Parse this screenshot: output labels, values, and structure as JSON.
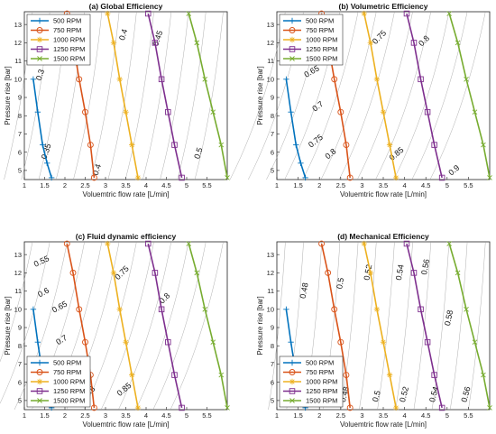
{
  "chart_data": [
    {
      "type": "line",
      "title": "(a) Global Efficiency",
      "xlabel": "Voluemtric flow rate [L/min]",
      "ylabel": "Pressure rise [bar]",
      "xlim": [
        1,
        6
      ],
      "ylim": [
        4.5,
        13.7
      ],
      "xticks": [
        "1",
        "1.5",
        "2",
        "2.5",
        "3",
        "3.5",
        "4",
        "4.5",
        "5",
        "5.5"
      ],
      "yticks": [
        "5",
        "6",
        "7",
        "8",
        "9",
        "10",
        "11",
        "12",
        "13"
      ],
      "legend_position": "top-left",
      "series": [
        {
          "name": "500 RPM",
          "color": "#0072BD",
          "marker": "plus",
          "x": [
            1.22,
            1.33,
            1.45,
            1.56,
            1.67
          ],
          "y": [
            10,
            8.2,
            6.4,
            5.4,
            4.6
          ]
        },
        {
          "name": "750 RPM",
          "color": "#D95319",
          "marker": "circle",
          "x": [
            2.05,
            2.2,
            2.35,
            2.5,
            2.63,
            2.72
          ],
          "y": [
            13.6,
            12,
            10,
            8.2,
            6.4,
            4.6
          ]
        },
        {
          "name": "1000 RPM",
          "color": "#EDB120",
          "marker": "asterisk",
          "x": [
            3.05,
            3.2,
            3.35,
            3.5,
            3.65,
            3.8
          ],
          "y": [
            13.6,
            12,
            10,
            8.2,
            6.4,
            4.6
          ]
        },
        {
          "name": "1250 RPM",
          "color": "#7E2F8E",
          "marker": "square",
          "x": [
            4.05,
            4.22,
            4.38,
            4.54,
            4.7,
            4.88
          ],
          "y": [
            13.6,
            12,
            10,
            8.2,
            6.4,
            4.6
          ]
        },
        {
          "name": "1500 RPM",
          "color": "#77AC30",
          "marker": "x",
          "x": [
            5.05,
            5.25,
            5.45,
            5.65,
            5.85,
            6.0
          ],
          "y": [
            13.6,
            12,
            10,
            8.2,
            6.4,
            4.6
          ]
        }
      ],
      "contour_labels": [
        {
          "text": "0.35",
          "x": 2.4,
          "y": 12.3,
          "angle": -72
        },
        {
          "text": "0.3",
          "x": 1.45,
          "y": 10.2,
          "angle": -72
        },
        {
          "text": "0.4",
          "x": 3.5,
          "y": 12.4,
          "angle": -72
        },
        {
          "text": "0.45",
          "x": 4.35,
          "y": 12.2,
          "angle": -72
        },
        {
          "text": "0.35",
          "x": 1.6,
          "y": 6.0,
          "angle": -72
        },
        {
          "text": "0.4",
          "x": 2.85,
          "y": 5.0,
          "angle": -72
        },
        {
          "text": "0.5",
          "x": 5.35,
          "y": 5.9,
          "angle": -72
        }
      ]
    },
    {
      "type": "line",
      "title": "(b) Volumetric Efficiency",
      "xlabel": "Voluemtric flow rate [L/min]",
      "ylabel": "Pressure rise [bar]",
      "xlim": [
        1,
        6
      ],
      "ylim": [
        4.5,
        13.7
      ],
      "xticks": [
        "1",
        "1.5",
        "2",
        "2.5",
        "3",
        "3.5",
        "4",
        "4.5",
        "5",
        "5.5"
      ],
      "yticks": [
        "5",
        "6",
        "7",
        "8",
        "9",
        "10",
        "11",
        "12",
        "13"
      ],
      "legend_position": "top-left",
      "series": [
        {
          "name": "500 RPM",
          "color": "#0072BD",
          "marker": "plus",
          "x": [
            1.22,
            1.33,
            1.45,
            1.56,
            1.67
          ],
          "y": [
            10,
            8.2,
            6.4,
            5.4,
            4.6
          ]
        },
        {
          "name": "750 RPM",
          "color": "#D95319",
          "marker": "circle",
          "x": [
            2.05,
            2.2,
            2.35,
            2.5,
            2.63,
            2.72
          ],
          "y": [
            13.6,
            12,
            10,
            8.2,
            6.4,
            4.6
          ]
        },
        {
          "name": "1000 RPM",
          "color": "#EDB120",
          "marker": "asterisk",
          "x": [
            3.05,
            3.2,
            3.35,
            3.5,
            3.65,
            3.8
          ],
          "y": [
            13.6,
            12,
            10,
            8.2,
            6.4,
            4.6
          ]
        },
        {
          "name": "1250 RPM",
          "color": "#7E2F8E",
          "marker": "square",
          "x": [
            4.05,
            4.22,
            4.38,
            4.54,
            4.7,
            4.88
          ],
          "y": [
            13.6,
            12,
            10,
            8.2,
            6.4,
            4.6
          ]
        },
        {
          "name": "1500 RPM",
          "color": "#77AC30",
          "marker": "x",
          "x": [
            5.05,
            5.25,
            5.45,
            5.65,
            5.85,
            6.0
          ],
          "y": [
            13.6,
            12,
            10,
            8.2,
            6.4,
            4.6
          ]
        }
      ],
      "contour_labels": [
        {
          "text": "0.6",
          "x": 1.45,
          "y": 11.4,
          "angle": -30
        },
        {
          "text": "0.65",
          "x": 1.85,
          "y": 10.3,
          "angle": -30
        },
        {
          "text": "0.75",
          "x": 3.45,
          "y": 12.2,
          "angle": -45
        },
        {
          "text": "0.8",
          "x": 4.5,
          "y": 12.0,
          "angle": -45
        },
        {
          "text": "0.7",
          "x": 2.0,
          "y": 8.4,
          "angle": -38
        },
        {
          "text": "0.75",
          "x": 1.95,
          "y": 6.5,
          "angle": -38
        },
        {
          "text": "0.8",
          "x": 2.3,
          "y": 5.8,
          "angle": -40
        },
        {
          "text": "0.85",
          "x": 3.85,
          "y": 5.8,
          "angle": -40
        },
        {
          "text": "0.9",
          "x": 5.2,
          "y": 4.9,
          "angle": -40
        }
      ]
    },
    {
      "type": "line",
      "title": "(c) Fluid dynamic efficiency",
      "xlabel": "Voluemtric flow rate [L/min]",
      "ylabel": "Pressure rise [bar]",
      "xlim": [
        1,
        6
      ],
      "ylim": [
        4.5,
        13.7
      ],
      "xticks": [
        "1",
        "1.5",
        "2",
        "2.5",
        "3",
        "3.5",
        "4",
        "4.5",
        "5",
        "5.5"
      ],
      "yticks": [
        "5",
        "6",
        "7",
        "8",
        "9",
        "10",
        "11",
        "12",
        "13"
      ],
      "legend_position": "bottom-left",
      "series": [
        {
          "name": "500 RPM",
          "color": "#0072BD",
          "marker": "plus",
          "x": [
            1.22,
            1.33,
            1.45,
            1.56,
            1.67
          ],
          "y": [
            10,
            8.2,
            6.4,
            5.4,
            4.6
          ]
        },
        {
          "name": "750 RPM",
          "color": "#D95319",
          "marker": "circle",
          "x": [
            2.05,
            2.2,
            2.35,
            2.5,
            2.63,
            2.72
          ],
          "y": [
            13.6,
            12,
            10,
            8.2,
            6.4,
            4.6
          ]
        },
        {
          "name": "1000 RPM",
          "color": "#EDB120",
          "marker": "asterisk",
          "x": [
            3.05,
            3.2,
            3.35,
            3.5,
            3.65,
            3.8
          ],
          "y": [
            13.6,
            12,
            10,
            8.2,
            6.4,
            4.6
          ]
        },
        {
          "name": "1250 RPM",
          "color": "#7E2F8E",
          "marker": "square",
          "x": [
            4.05,
            4.22,
            4.38,
            4.54,
            4.7,
            4.88
          ],
          "y": [
            13.6,
            12,
            10,
            8.2,
            6.4,
            4.6
          ]
        },
        {
          "name": "1500 RPM",
          "color": "#77AC30",
          "marker": "x",
          "x": [
            5.05,
            5.25,
            5.45,
            5.65,
            5.85,
            6.0
          ],
          "y": [
            13.6,
            12,
            10,
            8.2,
            6.4,
            4.6
          ]
        }
      ],
      "contour_labels": [
        {
          "text": "0.55",
          "x": 1.45,
          "y": 12.5,
          "angle": -25
        },
        {
          "text": "0.6",
          "x": 1.5,
          "y": 10.8,
          "angle": -28
        },
        {
          "text": "0.65",
          "x": 1.9,
          "y": 10.0,
          "angle": -28
        },
        {
          "text": "0.75",
          "x": 3.45,
          "y": 11.9,
          "angle": -45
        },
        {
          "text": "0.8",
          "x": 4.5,
          "y": 10.5,
          "angle": -45
        },
        {
          "text": "0.7",
          "x": 1.95,
          "y": 8.2,
          "angle": -32
        },
        {
          "text": "0.85",
          "x": 3.5,
          "y": 5.5,
          "angle": -40
        },
        {
          "text": "0.8",
          "x": 2.65,
          "y": 5.4,
          "angle": -40
        }
      ]
    },
    {
      "type": "line",
      "title": "(d) Mechanical Efficiency",
      "xlabel": "Voluemtric flow rate [L/min]",
      "ylabel": "Pressure rise [bar]",
      "xlim": [
        1,
        6
      ],
      "ylim": [
        4.5,
        13.7
      ],
      "xticks": [
        "1",
        "1.5",
        "2",
        "2.5",
        "3",
        "3.5",
        "4",
        "4.5",
        "5",
        "5.5"
      ],
      "yticks": [
        "5",
        "6",
        "7",
        "8",
        "9",
        "10",
        "11",
        "12",
        "13"
      ],
      "legend_position": "bottom-left",
      "series": [
        {
          "name": "500 RPM",
          "color": "#0072BD",
          "marker": "plus",
          "x": [
            1.22,
            1.33,
            1.45,
            1.56,
            1.67
          ],
          "y": [
            10,
            8.2,
            6.4,
            5.4,
            4.6
          ]
        },
        {
          "name": "750 RPM",
          "color": "#D95319",
          "marker": "circle",
          "x": [
            2.05,
            2.2,
            2.35,
            2.5,
            2.63,
            2.72
          ],
          "y": [
            13.6,
            12,
            10,
            8.2,
            6.4,
            4.6
          ]
        },
        {
          "name": "1000 RPM",
          "color": "#EDB120",
          "marker": "asterisk",
          "x": [
            3.05,
            3.2,
            3.35,
            3.5,
            3.65,
            3.8
          ],
          "y": [
            13.6,
            12,
            10,
            8.2,
            6.4,
            4.6
          ]
        },
        {
          "name": "1250 RPM",
          "color": "#7E2F8E",
          "marker": "square",
          "x": [
            4.05,
            4.22,
            4.38,
            4.54,
            4.7,
            4.88
          ],
          "y": [
            13.6,
            12,
            10,
            8.2,
            6.4,
            4.6
          ]
        },
        {
          "name": "1500 RPM",
          "color": "#77AC30",
          "marker": "x",
          "x": [
            5.05,
            5.25,
            5.45,
            5.65,
            5.85,
            6.0
          ],
          "y": [
            13.6,
            12,
            10,
            8.2,
            6.4,
            4.6
          ]
        }
      ],
      "contour_labels": [
        {
          "text": "0.48",
          "x": 1.7,
          "y": 11.0,
          "angle": -80
        },
        {
          "text": "0.5",
          "x": 2.55,
          "y": 11.4,
          "angle": -80
        },
        {
          "text": "0.52",
          "x": 3.2,
          "y": 12.0,
          "angle": -80
        },
        {
          "text": "0.54",
          "x": 3.95,
          "y": 12.0,
          "angle": -80
        },
        {
          "text": "0.56",
          "x": 4.55,
          "y": 12.3,
          "angle": -80
        },
        {
          "text": "0.58",
          "x": 5.1,
          "y": 9.5,
          "angle": -78
        },
        {
          "text": "0.48",
          "x": 2.65,
          "y": 5.3,
          "angle": -75
        },
        {
          "text": "0.5",
          "x": 3.4,
          "y": 5.2,
          "angle": -75
        },
        {
          "text": "0.52",
          "x": 4.05,
          "y": 5.3,
          "angle": -75
        },
        {
          "text": "0.54",
          "x": 4.75,
          "y": 5.3,
          "angle": -75
        },
        {
          "text": "0.56",
          "x": 5.5,
          "y": 5.3,
          "angle": -75
        }
      ]
    }
  ]
}
